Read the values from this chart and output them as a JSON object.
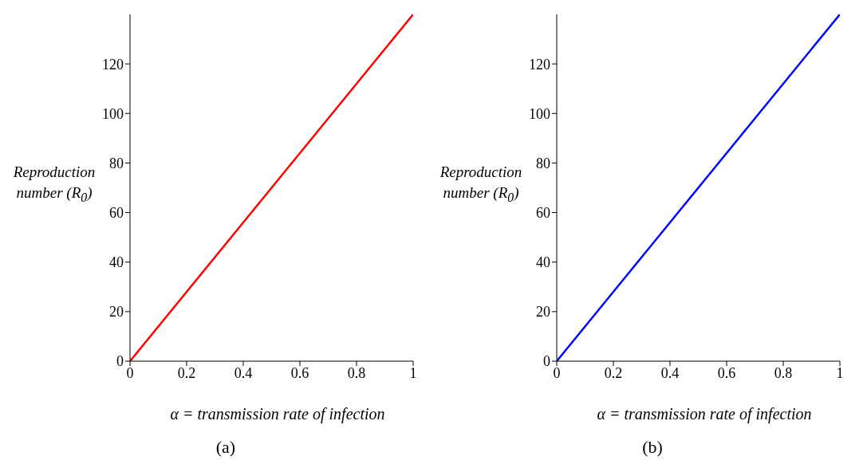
{
  "chart_data": [
    {
      "type": "line",
      "xlabel": "α = transmission rate of infection",
      "ylabel": "Reproduction number (R$_{0}$)",
      "annotations": [
        "(a)"
      ],
      "x": [
        0,
        0.2,
        0.4,
        0.6,
        0.8,
        1
      ],
      "series": [
        {
          "color": "#ff0000",
          "values": [
            0,
            28,
            56,
            84,
            112,
            140
          ]
        }
      ],
      "xlim": [
        0,
        1
      ],
      "xticks": [
        0,
        0.2,
        0.4,
        0.6,
        0.8,
        1
      ],
      "ylim": [
        0,
        140
      ],
      "yticks": [
        0,
        20,
        40,
        60,
        80,
        100,
        120
      ],
      "grid": false,
      "legend": false,
      "marker": "none",
      "line_style": "solid"
    },
    {
      "type": "line",
      "xlabel": "α = transmission rate of infection",
      "ylabel": "Reproduction number (R$_{0}$)",
      "annotations": [
        "(b)"
      ],
      "x": [
        0,
        0.2,
        0.4,
        0.6,
        0.8,
        1
      ],
      "series": [
        {
          "color": "#0000ff",
          "values": [
            0,
            28,
            56,
            84,
            112,
            140
          ]
        }
      ],
      "xlim": [
        0,
        1
      ],
      "xticks": [
        0,
        0.2,
        0.4,
        0.6,
        0.8,
        1
      ],
      "ylim": [
        0,
        140
      ],
      "yticks": [
        0,
        20,
        40,
        60,
        80,
        100,
        120
      ],
      "grid": false,
      "legend": false,
      "marker": "none",
      "line_style": "solid"
    }
  ]
}
